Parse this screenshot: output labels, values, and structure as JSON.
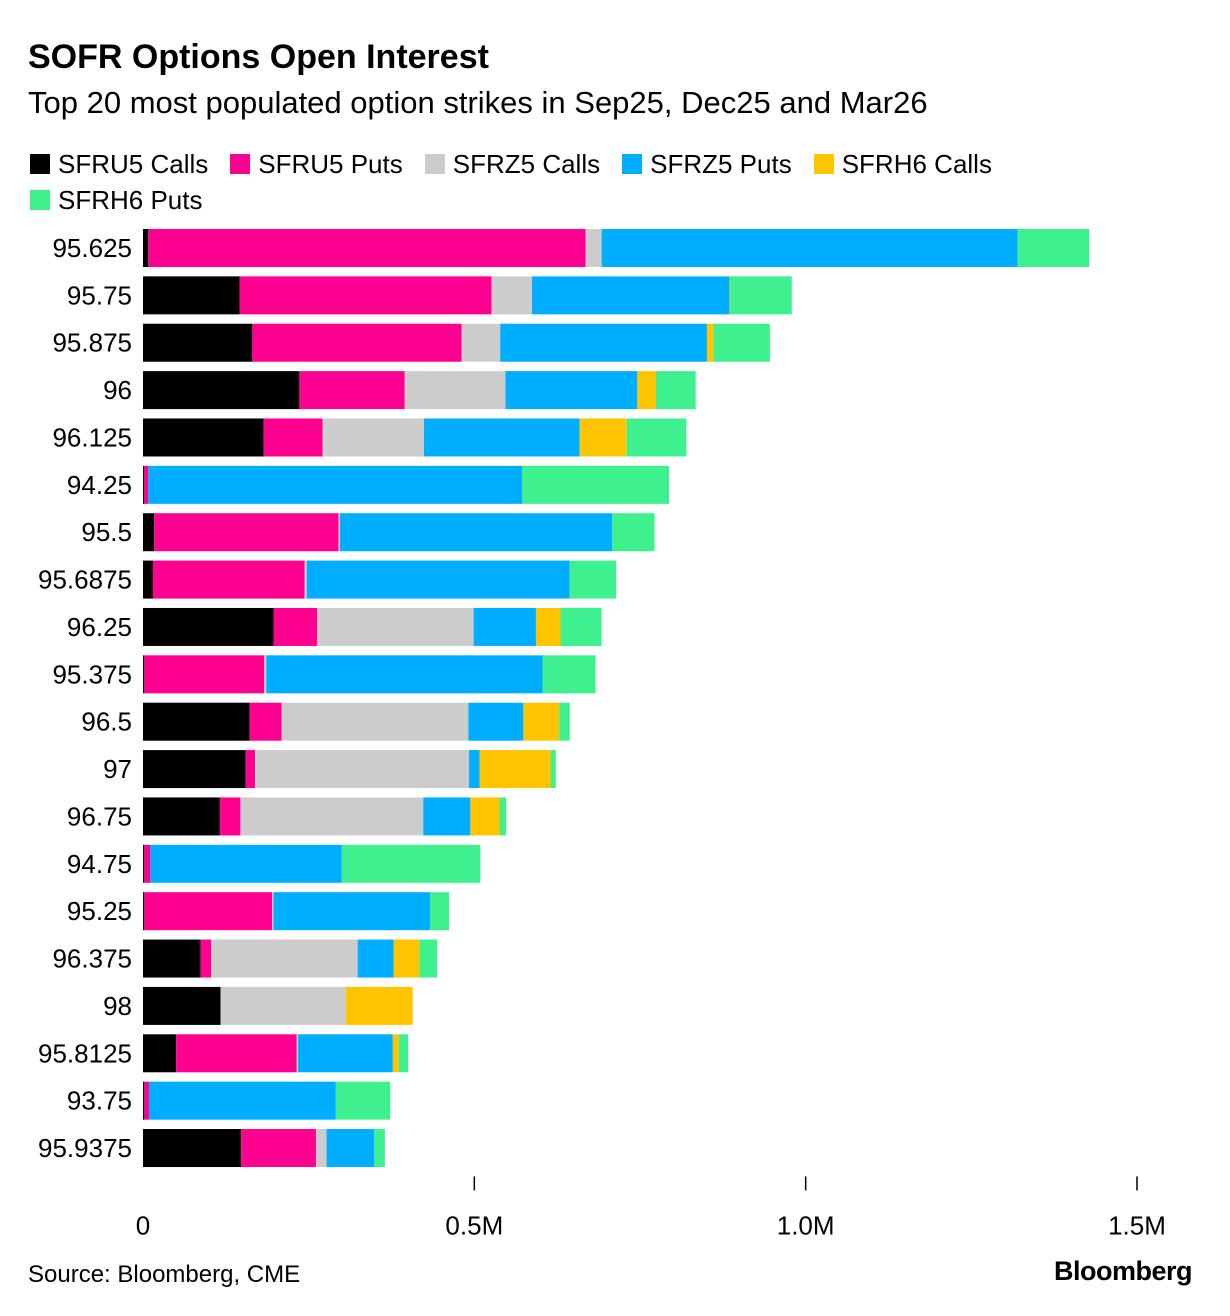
{
  "title": "SOFR Options Open Interest",
  "subtitle": "Top 20 most populated option strikes in Sep25, Dec25 and Mar26",
  "source": "Source: Bloomberg, CME",
  "logo": "Bloomberg",
  "chart_data": {
    "type": "bar",
    "orientation": "horizontal",
    "stacked": true,
    "title": "SOFR Options Open Interest",
    "subtitle": "Top 20 most populated option strikes in Sep25, Dec25 and Mar26",
    "xlim": [
      0,
      1500000
    ],
    "xticks": [
      0,
      500000,
      1000000,
      1500000
    ],
    "xtick_labels": [
      "0",
      "0.5M",
      "1.0M",
      "1.5M"
    ],
    "legend_position": "top",
    "categories": [
      "95.625",
      "95.75",
      "95.875",
      "96",
      "96.125",
      "94.25",
      "95.5",
      "95.6875",
      "96.25",
      "95.375",
      "96.5",
      "97",
      "96.75",
      "94.75",
      "95.25",
      "96.375",
      "98",
      "95.8125",
      "93.75",
      "95.9375"
    ],
    "series": [
      {
        "name": "SFRU5 Calls",
        "color": "#000000",
        "values": [
          8000,
          146000,
          165000,
          236000,
          182000,
          2000,
          17000,
          15000,
          197000,
          2000,
          161000,
          155000,
          116000,
          2000,
          2000,
          87000,
          117000,
          50000,
          2000,
          148000
        ]
      },
      {
        "name": "SFRU5 Puts",
        "color": "#ff0090",
        "values": [
          660000,
          380000,
          316000,
          159000,
          89000,
          6000,
          278000,
          229000,
          66000,
          181000,
          48000,
          14000,
          31000,
          9000,
          193000,
          16000,
          0,
          182000,
          7000,
          113000
        ]
      },
      {
        "name": "SFRZ5 Calls",
        "color": "#cccccc",
        "values": [
          24000,
          61000,
          58000,
          152000,
          153000,
          0,
          2000,
          3000,
          236000,
          3000,
          282000,
          323000,
          276000,
          0,
          2000,
          221000,
          189000,
          2000,
          0,
          16000
        ]
      },
      {
        "name": "SFRZ5 Puts",
        "color": "#00aeff",
        "values": [
          628000,
          298000,
          312000,
          199000,
          235000,
          564000,
          411000,
          397000,
          94000,
          417000,
          83000,
          16000,
          71000,
          289000,
          236000,
          54000,
          0,
          143000,
          282000,
          72000
        ]
      },
      {
        "name": "SFRH6 Calls",
        "color": "#ffc400",
        "values": [
          0,
          1000,
          10000,
          28000,
          71000,
          0,
          0,
          0,
          37000,
          0,
          54000,
          107000,
          44000,
          0,
          0,
          39000,
          101000,
          9000,
          0,
          0
        ]
      },
      {
        "name": "SFRH6 Puts",
        "color": "#3ff08e",
        "values": [
          108000,
          93000,
          85000,
          60000,
          90000,
          222000,
          64000,
          70000,
          62000,
          80000,
          16000,
          8000,
          10000,
          209000,
          29000,
          27000,
          0,
          14000,
          82000,
          16000
        ]
      }
    ]
  }
}
